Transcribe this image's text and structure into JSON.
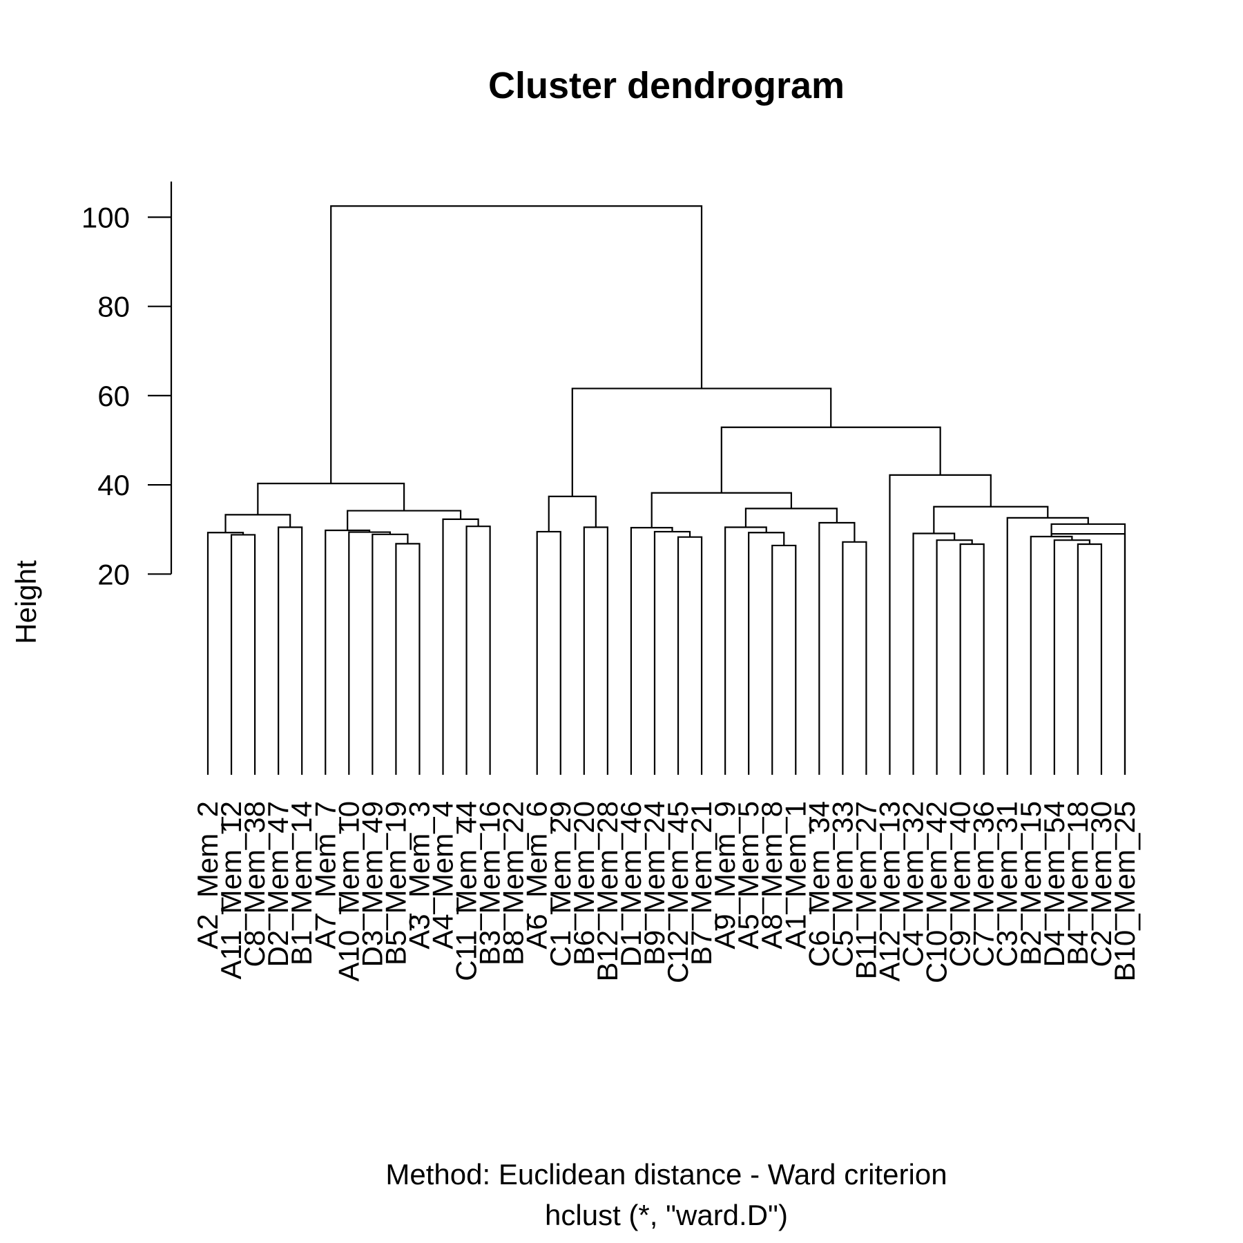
{
  "chart_data": {
    "type": "dendrogram",
    "title": "Cluster dendrogram",
    "ylabel": "Height",
    "xlabel": "Method: Euclidean distance - Ward criterion",
    "sub": "hclust (*, \"ward.D\")",
    "yticks": [
      20,
      40,
      60,
      80,
      100
    ],
    "ylim": [
      0,
      103
    ],
    "labels": [
      "A2_Mem_2",
      "A11_Mem_12",
      "C8_Mem_38",
      "D2_Mem_47",
      "B1_Mem_14",
      "A7_Mem_7",
      "A10_Mem_10",
      "D3_Mem_49",
      "B5_Mem_19",
      "A3_Mem_3",
      "A4_Mem_4",
      "C11_Mem_44",
      "B3_Mem_16",
      "B8_Mem_22",
      "A6_Mem_6",
      "C1_Mem_29",
      "B6_Mem_20",
      "B12_Mem_28",
      "D1_Mem_46",
      "B9_Mem_24",
      "C12_Mem_45",
      "B7_Mem_21",
      "A9_Mem_9",
      "A5_Mem_5",
      "A8_Mem_8",
      "A1_Mem_1",
      "C6_Mem_34",
      "C5_Mem_33",
      "B11_Mem_27",
      "A12_Mem_13",
      "C4_Mem_32",
      "C10_Mem_42",
      "C9_Mem_40",
      "C7_Mem_36",
      "C3_Mem_31",
      "B2_Mem_15",
      "D4_Mem_54",
      "B4_Mem_18",
      "C2_Mem_30",
      "B10_Mem_25"
    ],
    "merges": [
      {
        "left": 2,
        "right": 3,
        "height": 28.8
      },
      {
        "left": 1,
        "right": "m1",
        "height": 29.3
      },
      {
        "left": 4,
        "right": 5,
        "height": 30.5
      },
      {
        "left": "m2",
        "right": "m3",
        "height": 33.3
      },
      {
        "left": 9,
        "right": 10,
        "height": 26.8
      },
      {
        "left": 8,
        "right": "m5",
        "height": 28.9
      },
      {
        "left": 7,
        "right": "m6",
        "height": 29.4
      },
      {
        "left": 6,
        "right": "m7",
        "height": 29.8
      },
      {
        "left": 12,
        "right": 13,
        "height": 30.7
      },
      {
        "left": 11,
        "right": "m9",
        "height": 32.3
      },
      {
        "left": "m8",
        "right": "m10",
        "height": 34.2
      },
      {
        "left": "m4",
        "right": "m11",
        "height": 40.3
      },
      {
        "left": 15,
        "right": 16,
        "height": 29.5
      },
      {
        "left": 17,
        "right": 18,
        "height": 30.5
      },
      {
        "left": "m13",
        "right": "m14",
        "height": 37.4
      },
      {
        "left": 21,
        "right": 22,
        "height": 28.3
      },
      {
        "left": 20,
        "right": "m16",
        "height": 29.5
      },
      {
        "left": 19,
        "right": "m17",
        "height": 30.4
      },
      {
        "left": 25,
        "right": 26,
        "height": 26.4
      },
      {
        "left": 24,
        "right": "m19",
        "height": 29.3
      },
      {
        "left": 23,
        "right": "m20",
        "height": 30.5
      },
      {
        "left": 28,
        "right": 29,
        "height": 27.2
      },
      {
        "left": 27,
        "right": "m22",
        "height": 31.5
      },
      {
        "left": "m21",
        "right": "m23",
        "height": 34.7
      },
      {
        "left": "m18",
        "right": "m24",
        "height": 38.2
      },
      {
        "left": 33,
        "right": 34,
        "height": 26.7
      },
      {
        "left": 32,
        "right": "m26",
        "height": 27.6
      },
      {
        "left": 31,
        "right": "m27",
        "height": 29.1
      },
      {
        "left": 38,
        "right": 39,
        "height": 26.7
      },
      {
        "left": 37,
        "right": "m29",
        "height": 27.6
      },
      {
        "left": 36,
        "right": "m30",
        "height": 28.4
      },
      {
        "left": 40,
        "right": "m31",
        "height": 29.0
      },
      {
        "left": "m31",
        "right": 40,
        "height": 31.2
      },
      {
        "left": 35,
        "right": "m33",
        "height": 32.6
      },
      {
        "left": "m28",
        "right": "m34",
        "height": 35.1
      },
      {
        "left": 30,
        "right": "m35",
        "height": 42.2
      },
      {
        "left": "m25",
        "right": "m36",
        "height": 52.9
      },
      {
        "left": "m15",
        "right": "m37",
        "height": 61.6
      },
      {
        "left": "m12",
        "right": "m38",
        "height": 102.5
      }
    ]
  }
}
